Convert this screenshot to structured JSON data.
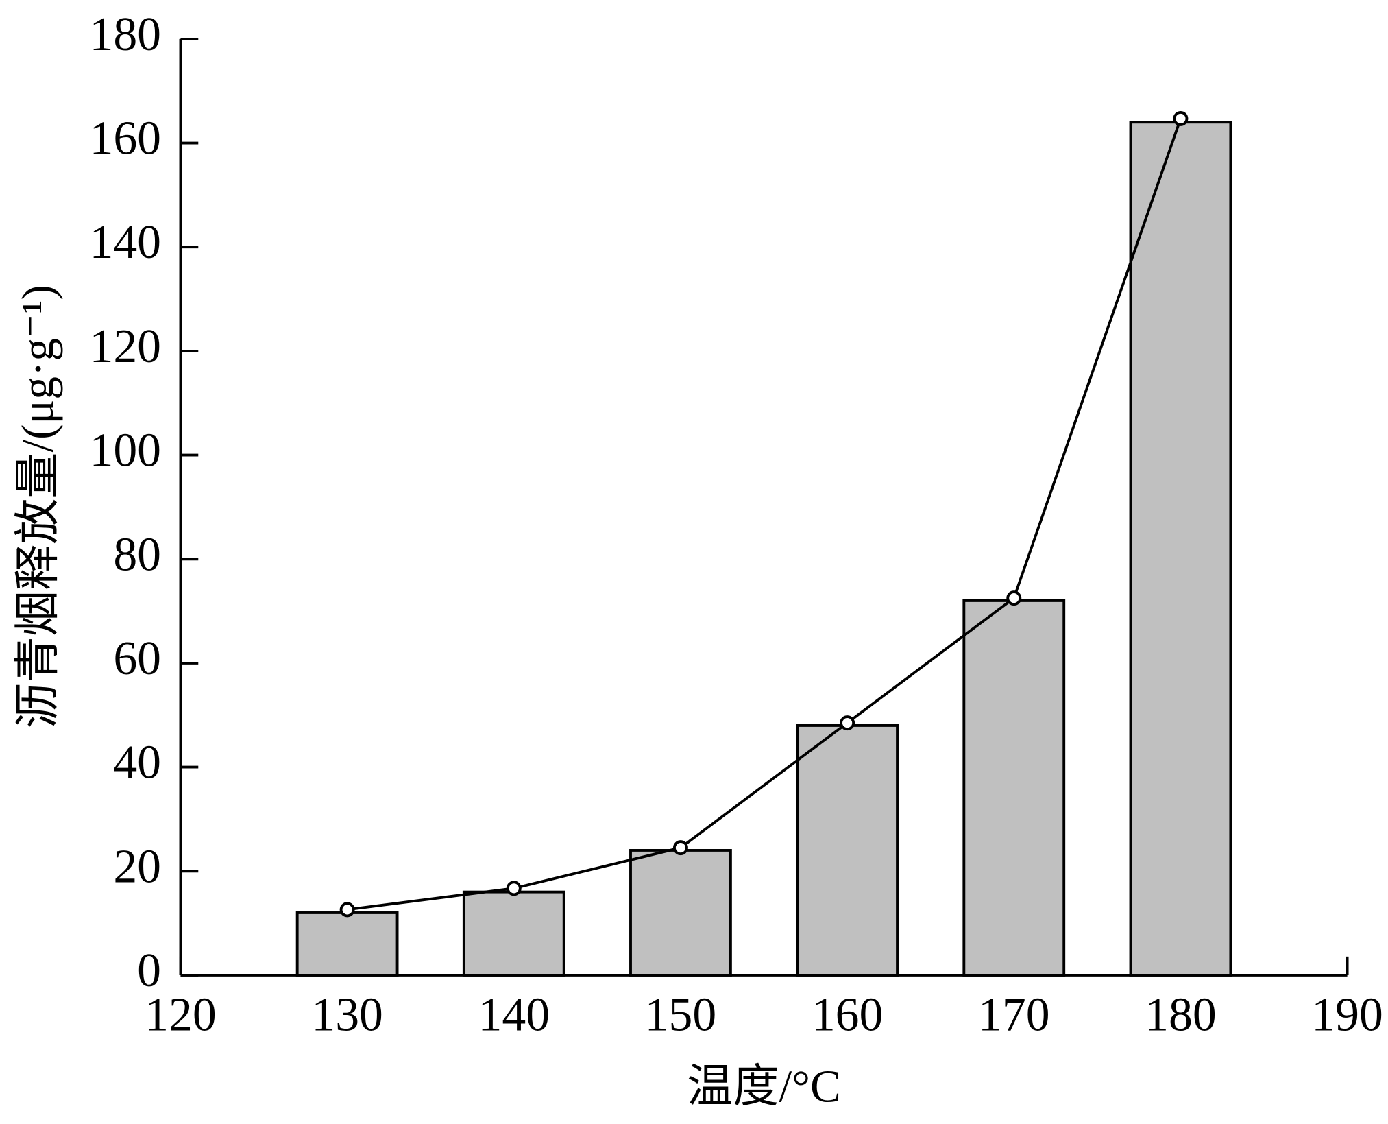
{
  "chart_data": {
    "type": "bar",
    "x_label": "温度/°C",
    "y_label": "沥青烟释放量/(μg·g⁻¹)",
    "x": [
      130,
      140,
      150,
      160,
      170,
      180
    ],
    "bar_width": 6,
    "series": [
      {
        "type": "bar",
        "color": "#c0c0c0",
        "values": [
          12,
          16,
          24,
          48,
          72,
          164
        ]
      },
      {
        "type": "line",
        "color": "#000000",
        "values": [
          12.6,
          16.7,
          24.5,
          48.5,
          72.5,
          164.7
        ]
      }
    ],
    "xlim": [
      120,
      190
    ],
    "xticks": [
      120,
      130,
      140,
      150,
      160,
      170,
      180,
      190
    ],
    "ylim": [
      0,
      180
    ],
    "yticks": [
      0,
      20,
      40,
      60,
      80,
      100,
      120,
      140,
      160,
      180
    ]
  }
}
